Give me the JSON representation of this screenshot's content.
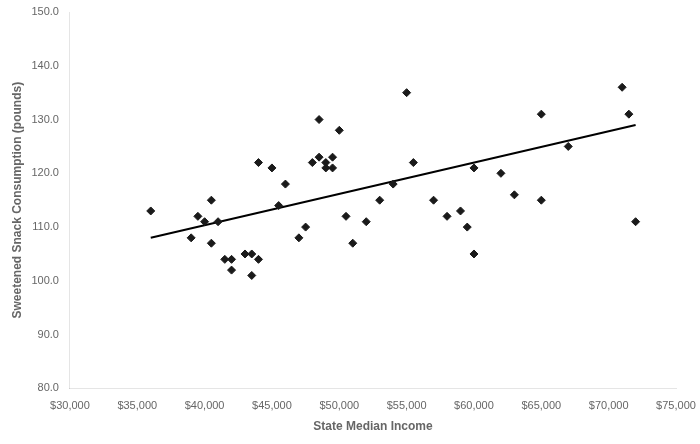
{
  "chart_data": {
    "type": "scatter",
    "xlabel": "State Median Income",
    "ylabel": "Sweetened Snack Consumption (pounds)",
    "series": [
      {
        "type": "scatter",
        "color": "#1a1a1a",
        "marker": "diamond",
        "x": [
          36000,
          39000,
          39500,
          40000,
          40500,
          40500,
          41000,
          41500,
          42000,
          42000,
          43000,
          43500,
          43500,
          44000,
          44000,
          45000,
          45500,
          46000,
          47000,
          47500,
          48000,
          48500,
          48500,
          49000,
          49000,
          49500,
          49500,
          50000,
          50500,
          51000,
          52000,
          53000,
          54000,
          55000,
          55500,
          57000,
          58000,
          59000,
          59500,
          60000,
          60000,
          62000,
          63000,
          65000,
          65000,
          67000,
          71000,
          71500,
          72000
        ],
        "values": [
          113,
          108,
          112,
          111,
          115,
          107,
          111,
          104,
          104,
          102,
          105,
          101,
          105,
          104,
          122,
          121,
          114,
          118,
          108,
          110,
          122,
          123,
          130,
          122,
          121,
          123,
          121,
          128,
          112,
          107,
          111,
          115,
          118,
          135,
          122,
          115,
          112,
          113,
          110,
          105,
          121,
          120,
          116,
          131,
          115,
          125,
          136,
          131,
          111
        ]
      },
      {
        "type": "line",
        "color": "#000000",
        "line_style": "solid",
        "x": [
          36000,
          72000
        ],
        "values": [
          108,
          129
        ]
      }
    ],
    "xlim": [
      30000,
      75000
    ],
    "ylim": [
      80,
      150
    ],
    "xticks": [
      {
        "value": 30000,
        "label": "$30,000"
      },
      {
        "value": 35000,
        "label": "$35,000"
      },
      {
        "value": 40000,
        "label": "$40,000"
      },
      {
        "value": 45000,
        "label": "$45,000"
      },
      {
        "value": 50000,
        "label": "$50,000"
      },
      {
        "value": 55000,
        "label": "$55,000"
      },
      {
        "value": 60000,
        "label": "$60,000"
      },
      {
        "value": 65000,
        "label": "$65,000"
      },
      {
        "value": 70000,
        "label": "$70,000"
      },
      {
        "value": 75000,
        "label": "$75,000"
      }
    ],
    "yticks": [
      {
        "value": 80,
        "label": "80.0"
      },
      {
        "value": 90,
        "label": "90.0"
      },
      {
        "value": 100,
        "label": "100.0"
      },
      {
        "value": 110,
        "label": "110.0"
      },
      {
        "value": 120,
        "label": "120.0"
      },
      {
        "value": 130,
        "label": "130.0"
      },
      {
        "value": 140,
        "label": "140.0"
      },
      {
        "value": 150,
        "label": "150.0"
      }
    ],
    "grid": false
  }
}
